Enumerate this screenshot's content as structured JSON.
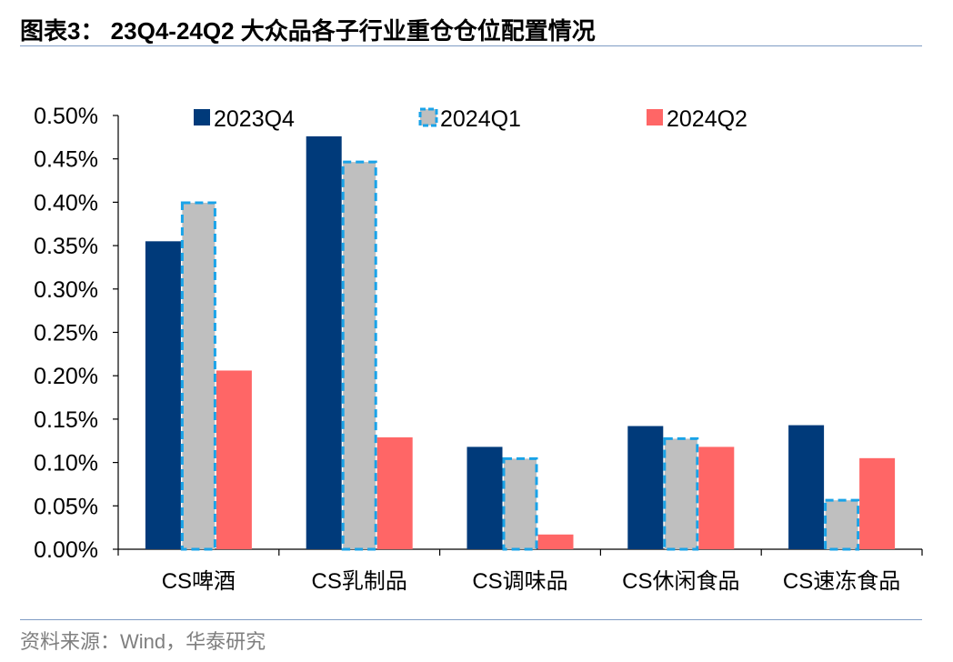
{
  "figure": {
    "title": "图表3： 23Q4-24Q2 大众品各子行业重仓仓位配置情况",
    "source": "资料来源：Wind，华泰研究"
  },
  "chart_data": {
    "type": "bar",
    "title": "",
    "xlabel": "",
    "ylabel": "",
    "ylim": [
      0,
      0.5
    ],
    "yticks": [
      "0.00%",
      "0.05%",
      "0.10%",
      "0.15%",
      "0.20%",
      "0.25%",
      "0.30%",
      "0.35%",
      "0.40%",
      "0.45%",
      "0.50%"
    ],
    "grid": false,
    "legend_position": "top",
    "categories": [
      "CS啤酒",
      "CS乳制品",
      "CS调味品",
      "CS休闲食品",
      "CS速冻食品"
    ],
    "series": [
      {
        "name": "2023Q4",
        "color": "#003a7a",
        "style": "solid",
        "values": [
          0.355,
          0.476,
          0.118,
          0.142,
          0.143
        ]
      },
      {
        "name": "2024Q1",
        "color": "#bfbfbf",
        "border": "#1aa3e8",
        "style": "dashed",
        "values": [
          0.401,
          0.448,
          0.106,
          0.129,
          0.058
        ]
      },
      {
        "name": "2024Q2",
        "color": "#ff6666",
        "style": "solid",
        "values": [
          0.206,
          0.129,
          0.017,
          0.118,
          0.105
        ]
      }
    ]
  }
}
